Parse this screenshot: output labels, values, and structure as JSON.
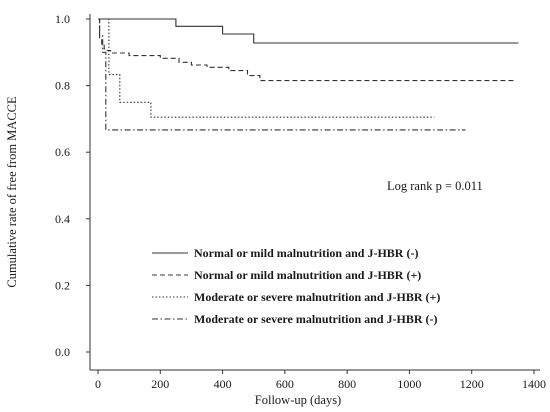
{
  "chart_data": {
    "type": "line",
    "subtype": "kaplan-meier step",
    "xlabel": "Follow-up (days)",
    "ylabel": "Cumulative rate of free from MACCE",
    "xlim": [
      0,
      1400
    ],
    "ylim": [
      0.0,
      1.0
    ],
    "x_ticks": [
      "0",
      "200",
      "400",
      "600",
      "800",
      "1000",
      "1200",
      "1400"
    ],
    "y_ticks": [
      "0.0",
      "0.2",
      "0.4",
      "0.6",
      "0.8",
      "1.0"
    ],
    "annotation": "Log rank  p = 0.011",
    "legend_position": "lower-left",
    "series": [
      {
        "name": "Normal or mild malnutrition and J-HBR (-)",
        "line_style": "solid",
        "points": [
          [
            0,
            1.0
          ],
          [
            250,
            1.0
          ],
          [
            250,
            0.978
          ],
          [
            400,
            0.978
          ],
          [
            400,
            0.955
          ],
          [
            500,
            0.955
          ],
          [
            500,
            0.928
          ],
          [
            1350,
            0.928
          ]
        ]
      },
      {
        "name": "Normal or mild malnutrition and J-HBR (+)",
        "line_style": "dashed",
        "points": [
          [
            0,
            1.0
          ],
          [
            5,
            1.0
          ],
          [
            5,
            0.94
          ],
          [
            12,
            0.94
          ],
          [
            12,
            0.925
          ],
          [
            20,
            0.925
          ],
          [
            20,
            0.91
          ],
          [
            30,
            0.91
          ],
          [
            30,
            0.905
          ],
          [
            40,
            0.905
          ],
          [
            40,
            0.898
          ],
          [
            100,
            0.898
          ],
          [
            100,
            0.89
          ],
          [
            200,
            0.89
          ],
          [
            200,
            0.882
          ],
          [
            260,
            0.882
          ],
          [
            260,
            0.87
          ],
          [
            300,
            0.87
          ],
          [
            300,
            0.862
          ],
          [
            350,
            0.862
          ],
          [
            350,
            0.855
          ],
          [
            420,
            0.855
          ],
          [
            420,
            0.845
          ],
          [
            480,
            0.845
          ],
          [
            480,
            0.83
          ],
          [
            520,
            0.83
          ],
          [
            520,
            0.815
          ],
          [
            1340,
            0.815
          ]
        ]
      },
      {
        "name": "Moderate or severe malnutrition and J-HBR (+)",
        "line_style": "dotted",
        "points": [
          [
            0,
            1.0
          ],
          [
            35,
            1.0
          ],
          [
            35,
            0.833
          ],
          [
            70,
            0.833
          ],
          [
            70,
            0.75
          ],
          [
            80,
            0.75
          ],
          [
            80,
            0.75
          ],
          [
            170,
            0.75
          ],
          [
            170,
            0.705
          ],
          [
            1080,
            0.705
          ]
        ]
      },
      {
        "name": "Moderate or severe malnutrition and J-HBR (-)",
        "line_style": "dashdot",
        "points": [
          [
            0,
            1.0
          ],
          [
            5,
            1.0
          ],
          [
            5,
            0.95
          ],
          [
            15,
            0.95
          ],
          [
            15,
            0.9
          ],
          [
            25,
            0.9
          ],
          [
            25,
            0.667
          ],
          [
            1180,
            0.667
          ]
        ]
      }
    ]
  }
}
